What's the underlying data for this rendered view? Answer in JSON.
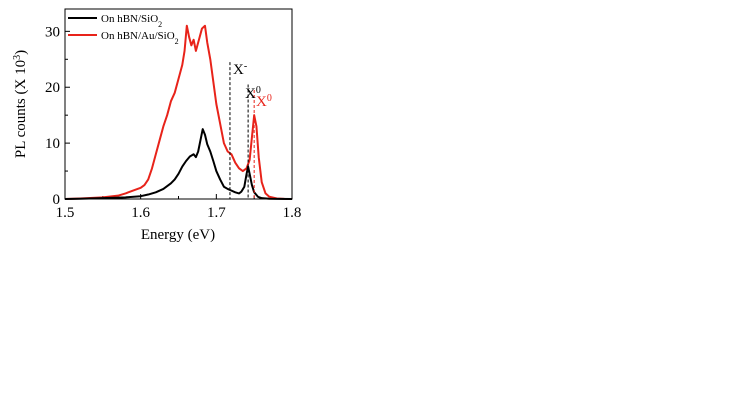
{
  "chart_data": {
    "type": "line",
    "title": "",
    "xlabel": "Energy (eV)",
    "ylabel": "PL  counts (X 10",
    "ylabel_sup": "3",
    "ylabel_tail": ")",
    "xlim": [
      1.5,
      1.8
    ],
    "ylim": [
      0,
      34
    ],
    "xticks": [
      1.5,
      1.6,
      1.7,
      1.8
    ],
    "xtick_labels": [
      "1.5",
      "1.6",
      "1.7",
      "1.8"
    ],
    "yticks": [
      0,
      10,
      20,
      30
    ],
    "ytick_labels": [
      "0",
      "10",
      "20",
      "30"
    ],
    "grid": false,
    "legend_position": "top-left",
    "series": [
      {
        "name": "On hBN/SiO",
        "name_sub": "2",
        "color": "#000000",
        "points": [
          [
            1.5,
            0
          ],
          [
            1.52,
            0.05
          ],
          [
            1.55,
            0.15
          ],
          [
            1.58,
            0.3
          ],
          [
            1.6,
            0.5
          ],
          [
            1.61,
            0.8
          ],
          [
            1.62,
            1.2
          ],
          [
            1.63,
            1.8
          ],
          [
            1.64,
            2.8
          ],
          [
            1.645,
            3.5
          ],
          [
            1.65,
            4.5
          ],
          [
            1.655,
            5.8
          ],
          [
            1.66,
            6.8
          ],
          [
            1.665,
            7.6
          ],
          [
            1.67,
            8.0
          ],
          [
            1.673,
            7.5
          ],
          [
            1.676,
            8.5
          ],
          [
            1.679,
            10.5
          ],
          [
            1.682,
            12.5
          ],
          [
            1.685,
            11.5
          ],
          [
            1.688,
            9.8
          ],
          [
            1.692,
            8.5
          ],
          [
            1.696,
            6.8
          ],
          [
            1.7,
            5.0
          ],
          [
            1.705,
            3.5
          ],
          [
            1.71,
            2.2
          ],
          [
            1.715,
            1.8
          ],
          [
            1.72,
            1.5
          ],
          [
            1.725,
            1.2
          ],
          [
            1.73,
            1.0
          ],
          [
            1.733,
            1.3
          ],
          [
            1.737,
            2.2
          ],
          [
            1.74,
            4.5
          ],
          [
            1.742,
            5.8
          ],
          [
            1.744,
            4.5
          ],
          [
            1.747,
            2.5
          ],
          [
            1.75,
            1.2
          ],
          [
            1.755,
            0.4
          ],
          [
            1.76,
            0.15
          ],
          [
            1.77,
            0.05
          ],
          [
            1.78,
            0.02
          ],
          [
            1.8,
            0
          ]
        ]
      },
      {
        "name": "On hBN/Au/SiO",
        "name_sub": "2",
        "color": "#e8231a",
        "points": [
          [
            1.5,
            0
          ],
          [
            1.52,
            0.1
          ],
          [
            1.55,
            0.3
          ],
          [
            1.57,
            0.6
          ],
          [
            1.58,
            1.0
          ],
          [
            1.59,
            1.5
          ],
          [
            1.6,
            2.0
          ],
          [
            1.605,
            2.5
          ],
          [
            1.61,
            3.5
          ],
          [
            1.615,
            5.5
          ],
          [
            1.62,
            8.0
          ],
          [
            1.625,
            10.5
          ],
          [
            1.63,
            13.0
          ],
          [
            1.635,
            15.0
          ],
          [
            1.64,
            17.5
          ],
          [
            1.645,
            19.0
          ],
          [
            1.65,
            21.5
          ],
          [
            1.655,
            24.0
          ],
          [
            1.658,
            26.5
          ],
          [
            1.661,
            31.0
          ],
          [
            1.664,
            29.0
          ],
          [
            1.667,
            27.5
          ],
          [
            1.67,
            28.5
          ],
          [
            1.673,
            26.5
          ],
          [
            1.677,
            28.5
          ],
          [
            1.681,
            30.5
          ],
          [
            1.685,
            31.0
          ],
          [
            1.688,
            28.0
          ],
          [
            1.692,
            25.0
          ],
          [
            1.696,
            21.0
          ],
          [
            1.7,
            17.0
          ],
          [
            1.705,
            13.5
          ],
          [
            1.71,
            10.0
          ],
          [
            1.715,
            8.5
          ],
          [
            1.72,
            8.0
          ],
          [
            1.725,
            6.5
          ],
          [
            1.73,
            5.5
          ],
          [
            1.735,
            5.0
          ],
          [
            1.74,
            5.5
          ],
          [
            1.744,
            7.0
          ],
          [
            1.747,
            11.0
          ],
          [
            1.75,
            15.0
          ],
          [
            1.753,
            13.0
          ],
          [
            1.756,
            7.5
          ],
          [
            1.76,
            3.0
          ],
          [
            1.765,
            1.0
          ],
          [
            1.77,
            0.4
          ],
          [
            1.78,
            0.1
          ],
          [
            1.79,
            0.03
          ],
          [
            1.8,
            0
          ]
        ]
      }
    ],
    "annotations": [
      {
        "text": "X",
        "sup": "-",
        "x": 1.718,
        "color": "#000000"
      },
      {
        "text": "X",
        "sup": "0",
        "x": 1.742,
        "color": "#000000"
      },
      {
        "text": "X",
        "sup": "0",
        "x": 1.75,
        "color": "#e8231a"
      }
    ]
  }
}
